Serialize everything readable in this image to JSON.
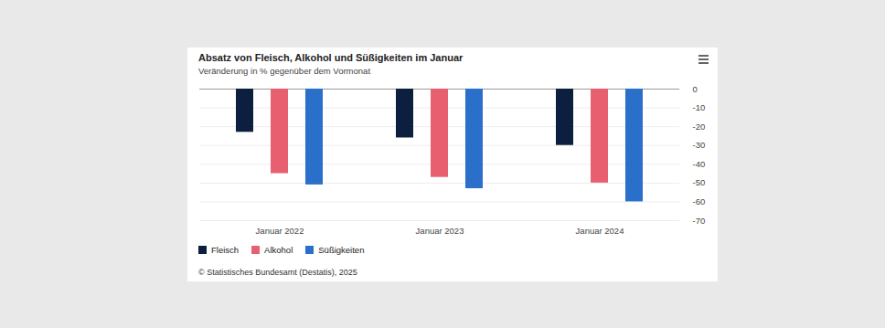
{
  "chart_data": {
    "type": "bar",
    "title": "Absatz von Fleisch, Alkohol und Süßigkeiten im Januar",
    "subtitle": "Veränderung in % gegenüber dem Vormonat",
    "caption": "© Statistisches Bundesamt (Destatis), 2025",
    "categories": [
      "Januar 2022",
      "Januar 2023",
      "Januar 2024"
    ],
    "series": [
      {
        "name": "Fleisch",
        "color": "#0d1f3f",
        "values": [
          -23,
          -26,
          -30
        ]
      },
      {
        "name": "Alkohol",
        "color": "#e8606f",
        "values": [
          -45,
          -47,
          -50
        ]
      },
      {
        "name": "Süßigkeiten",
        "color": "#2a6fc9",
        "values": [
          -51,
          -53,
          -60
        ]
      }
    ],
    "ylim": [
      -70,
      0
    ],
    "yticks": [
      0,
      -10,
      -20,
      -30,
      -40,
      -50,
      -60,
      -70
    ],
    "grid": true,
    "legend": "bottom-left"
  }
}
